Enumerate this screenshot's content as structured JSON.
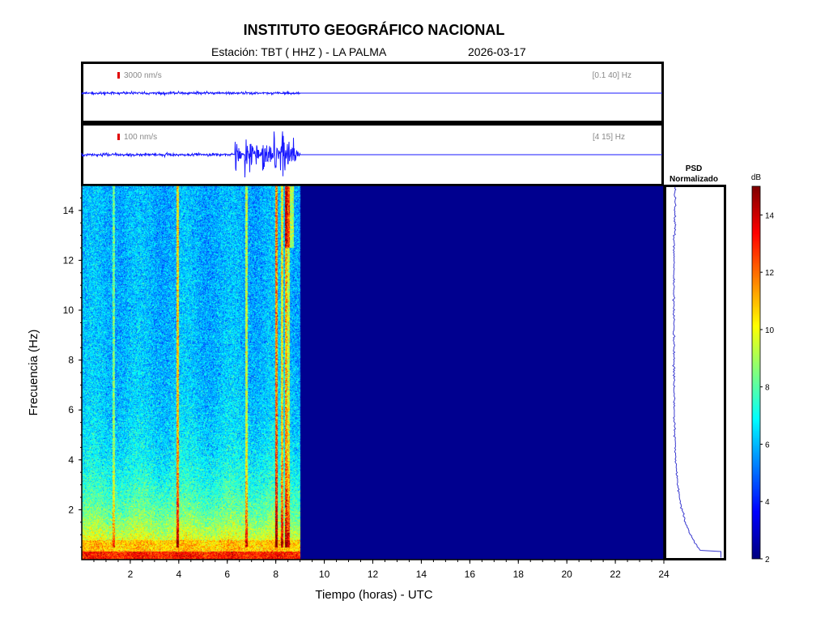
{
  "header": {
    "title": "INSTITUTO GEOGRÁFICO NACIONAL",
    "station": "Estación:  TBT ( HHZ ) - LA PALMA",
    "date": "2026-03-17"
  },
  "colors": {
    "trace": "#1a1aff",
    "scale_marker": "#e00000",
    "empty_spectrogram": "#00008f",
    "psd_line": "#3a3ad0"
  },
  "chart_data": [
    {
      "type": "line",
      "name": "trace-broadband",
      "scale_label": "3000 nm/s",
      "band_label": "[0.1 40] Hz",
      "data_end_hour": 9.0,
      "xlim": [
        0,
        24
      ]
    },
    {
      "type": "line",
      "name": "trace-filtered",
      "scale_label": "100 nm/s",
      "band_label": "[4 15] Hz",
      "data_end_hour": 9.0,
      "events_hours": [
        6.35,
        6.75,
        6.95,
        7.15,
        7.45,
        7.65,
        7.95,
        8.2,
        8.3,
        8.5,
        8.7
      ],
      "xlim": [
        0,
        24
      ]
    },
    {
      "type": "heatmap",
      "xlabel": "Tiempo (horas) - UTC",
      "ylabel": "Frecuencia  (Hz)",
      "xlim": [
        0,
        24
      ],
      "ylim": [
        0,
        15
      ],
      "x_ticks": [
        2,
        4,
        6,
        8,
        10,
        12,
        14,
        16,
        18,
        20,
        22,
        24
      ],
      "y_ticks": [
        2,
        4,
        6,
        8,
        10,
        12,
        14
      ],
      "data_end_hour": 9.0
    },
    {
      "type": "line",
      "name": "psd",
      "title_line1": "PSD",
      "title_line2": "Normalizado"
    },
    {
      "type": "heatmap",
      "name": "colorbar",
      "unit": "dB",
      "range": [
        2,
        15
      ],
      "ticks": [
        2,
        4,
        6,
        8,
        10,
        12,
        14
      ]
    }
  ]
}
